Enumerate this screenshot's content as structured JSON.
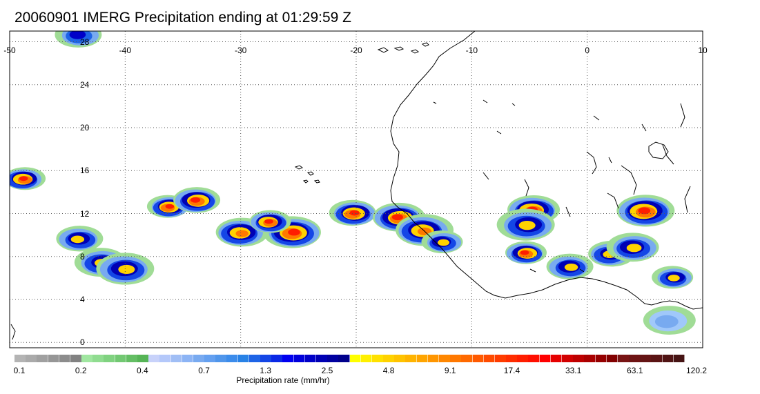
{
  "title": "20060901 IMERG Precipitation ending at 01:29:59 Z",
  "map": {
    "projection": "equirectangular",
    "lon_range": [
      -50,
      10
    ],
    "lat_range": [
      -0.5,
      29
    ],
    "lon_ticks": [
      "-50",
      "-40",
      "-30",
      "-20",
      "-10",
      "0",
      "10"
    ],
    "lat_ticks": [
      "28",
      "24",
      "20",
      "16",
      "12",
      "8",
      "4",
      "0"
    ],
    "gridlines": "dotted",
    "coastline_color": "#000000",
    "region": "Tropical North Atlantic / West Africa"
  },
  "precip_cells": [
    {
      "lon": -36.2,
      "lat": 12.6,
      "peak": "red"
    },
    {
      "lon": -33.8,
      "lat": 13.2,
      "peak": "red"
    },
    {
      "lon": -30.0,
      "lat": 10.2,
      "peak": "orange"
    },
    {
      "lon": -25.5,
      "lat": 10.2,
      "peak": "red"
    },
    {
      "lon": -27.5,
      "lat": 11.2,
      "peak": "red"
    },
    {
      "lon": -20.2,
      "lat": 12.0,
      "peak": "red"
    },
    {
      "lon": -16.3,
      "lat": 11.6,
      "peak": "red"
    },
    {
      "lon": -14.2,
      "lat": 10.4,
      "peak": "orange"
    },
    {
      "lon": -12.5,
      "lat": 9.3,
      "peak": "yellow"
    },
    {
      "lon": -44.0,
      "lat": 9.6,
      "peak": "yellow"
    },
    {
      "lon": -42.0,
      "lat": 7.4,
      "peak": "yellow"
    },
    {
      "lon": -40.0,
      "lat": 6.8,
      "peak": "yellow"
    },
    {
      "lon": -48.8,
      "lat": 15.2,
      "peak": "red"
    },
    {
      "lon": -44.0,
      "lat": 28.6,
      "peak": "blue"
    },
    {
      "lon": -4.7,
      "lat": 12.3,
      "peak": "red"
    },
    {
      "lon": -5.2,
      "lat": 10.9,
      "peak": "yellow"
    },
    {
      "lon": -5.3,
      "lat": 8.3,
      "peak": "red"
    },
    {
      "lon": 2.0,
      "lat": 8.2,
      "peak": "yellow"
    },
    {
      "lon": 4.0,
      "lat": 8.8,
      "peak": "yellow"
    },
    {
      "lon": 5.0,
      "lat": 12.2,
      "peak": "red"
    },
    {
      "lon": 7.5,
      "lat": 6.0,
      "peak": "yellow"
    },
    {
      "lon": -1.5,
      "lat": 7.0,
      "peak": "yellow"
    },
    {
      "lon": 7.0,
      "lat": 2.0,
      "peak": "lightblue"
    }
  ],
  "colorbar": {
    "title": "Precipitation rate (mm/hr)",
    "tick_labels": [
      "0.1",
      "0.2",
      "0.4",
      "0.7",
      "1.3",
      "2.5",
      "4.8",
      "9.1",
      "17.4",
      "33.1",
      "63.1",
      "120.2"
    ],
    "colors": [
      "#b4b4b4",
      "#aaaaaa",
      "#a0a0a0",
      "#969696",
      "#8c8c8c",
      "#828282",
      "#a0e6a0",
      "#90dc90",
      "#80d280",
      "#72c872",
      "#64be64",
      "#56b456",
      "#c8d2fa",
      "#b4c8fa",
      "#a0bef5",
      "#8cb4f5",
      "#78aaf0",
      "#64a0f0",
      "#5096eb",
      "#3c8ceb",
      "#2882e6",
      "#1e64e6",
      "#1446e6",
      "#0a28e6",
      "#0000f0",
      "#0000dc",
      "#0000c8",
      "#0000b4",
      "#0000a0",
      "#00008c",
      "#ffff00",
      "#fff000",
      "#ffe100",
      "#ffd200",
      "#ffc300",
      "#ffb400",
      "#ffa500",
      "#ff9600",
      "#ff8700",
      "#ff7800",
      "#ff6900",
      "#ff5a00",
      "#ff4b00",
      "#ff3c00",
      "#ff2d00",
      "#ff1e00",
      "#ff0f00",
      "#ff0000",
      "#e60000",
      "#d20000",
      "#be0000",
      "#aa0000",
      "#960000",
      "#820000",
      "#781414",
      "#6e1414",
      "#641414",
      "#5a1414",
      "#501414",
      "#461414"
    ]
  }
}
